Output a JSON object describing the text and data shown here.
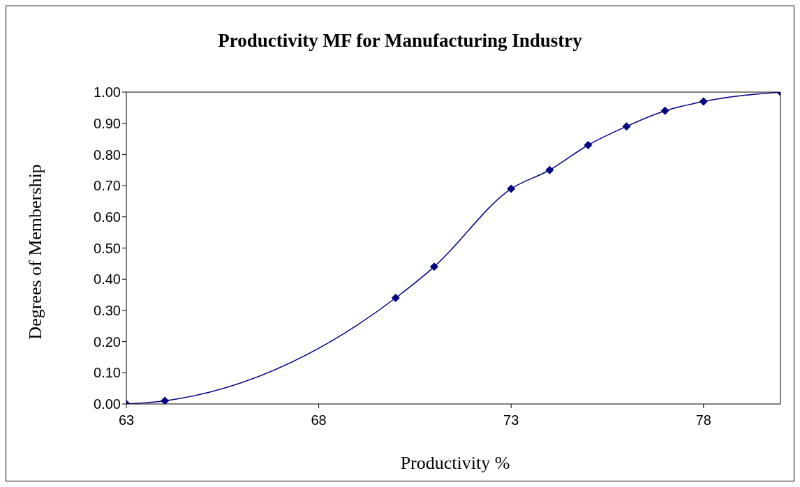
{
  "chart_data": {
    "type": "line",
    "title": "Productivity MF for Manufacturing Industry",
    "xlabel": "Productivity %",
    "ylabel": "Degrees of Membership",
    "x": [
      63,
      64,
      70,
      71,
      73,
      74,
      75,
      76,
      77,
      78,
      80
    ],
    "series": [
      {
        "color": "#000080",
        "values": [
          0,
          0.01,
          0.34,
          0.44,
          0.69,
          0.75,
          0.83,
          0.89,
          0.94,
          0.97,
          1.0
        ]
      }
    ],
    "xlim": [
      63,
      80
    ],
    "xticks": [
      63,
      68,
      73,
      78
    ],
    "ylim": [
      0,
      1
    ],
    "yticks": [
      {
        "value": 0,
        "label": "0.00"
      },
      {
        "value": 0.1,
        "label": "0.10"
      },
      {
        "value": 0.2,
        "label": "0.20"
      },
      {
        "value": 0.3,
        "label": "0.30"
      },
      {
        "value": 0.4,
        "label": "0.40"
      },
      {
        "value": 0.5,
        "label": "0.50"
      },
      {
        "value": 0.6,
        "label": "0.60"
      },
      {
        "value": 0.7,
        "label": "0.70"
      },
      {
        "value": 0.8,
        "label": "0.80"
      },
      {
        "value": 0.9,
        "label": "0.90"
      },
      {
        "value": 1,
        "label": "1.00"
      }
    ],
    "grid": false,
    "legend": false,
    "marker": "diamond",
    "line_style": "solid"
  }
}
